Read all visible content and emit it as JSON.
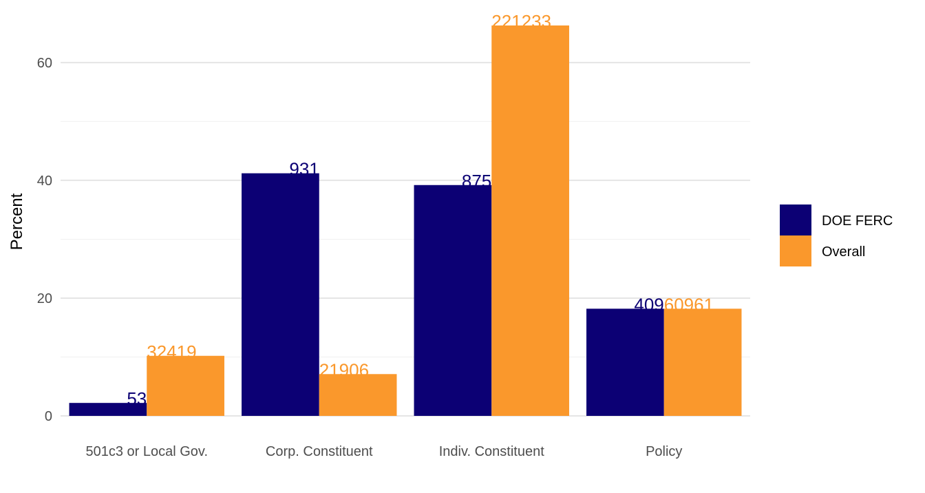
{
  "chart_data": {
    "type": "bar",
    "categories": [
      "501c3 or Local Gov.",
      "Corp. Constituent",
      "Indiv. Constituent",
      "Policy"
    ],
    "series": [
      {
        "name": "DOE FERC",
        "color": "#0c0074",
        "values": [
          2.2,
          41.2,
          39.2,
          18.2
        ],
        "labels": [
          "53",
          "931",
          "875",
          "409"
        ]
      },
      {
        "name": "Overall",
        "color": "#fa982c",
        "values": [
          10.2,
          7.1,
          66.3,
          18.2
        ],
        "labels": [
          "32419",
          "21906",
          "221233",
          "60961"
        ]
      }
    ],
    "ylabel": "Percent",
    "xlabel": "",
    "ylim": [
      0,
      66.3
    ],
    "yticks": [
      0,
      20,
      40,
      60
    ],
    "grid": true,
    "legend": "right"
  }
}
